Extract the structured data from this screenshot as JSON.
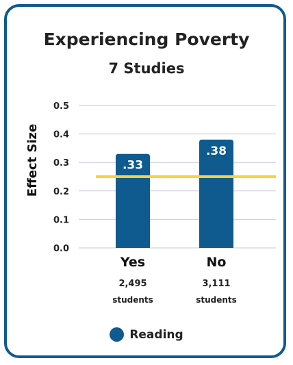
{
  "title": "Experiencing Poverty",
  "subtitle": "7 Studies",
  "colors": {
    "bar": "#0f5a8e",
    "benchmark": "#f7d23e",
    "grid": "#c8c9e0",
    "border": "#0f5a8e"
  },
  "chart_data": {
    "type": "bar",
    "ylabel": "Effect Size",
    "ylim": [
      0,
      0.5
    ],
    "yticks": [
      "0.0",
      "0.1",
      "0.2",
      "0.3",
      "0.4",
      "0.5"
    ],
    "grid": true,
    "categories": [
      "Yes",
      "No"
    ],
    "values": [
      0.33,
      0.38
    ],
    "data_labels": [
      ".33",
      ".38"
    ],
    "counts": [
      "2,495",
      "3,111"
    ],
    "count_unit": "students",
    "benchmark_line": 0.25,
    "series": [
      {
        "name": "Reading",
        "values": [
          0.33,
          0.38
        ]
      }
    ]
  },
  "legend": {
    "label": "Reading"
  }
}
